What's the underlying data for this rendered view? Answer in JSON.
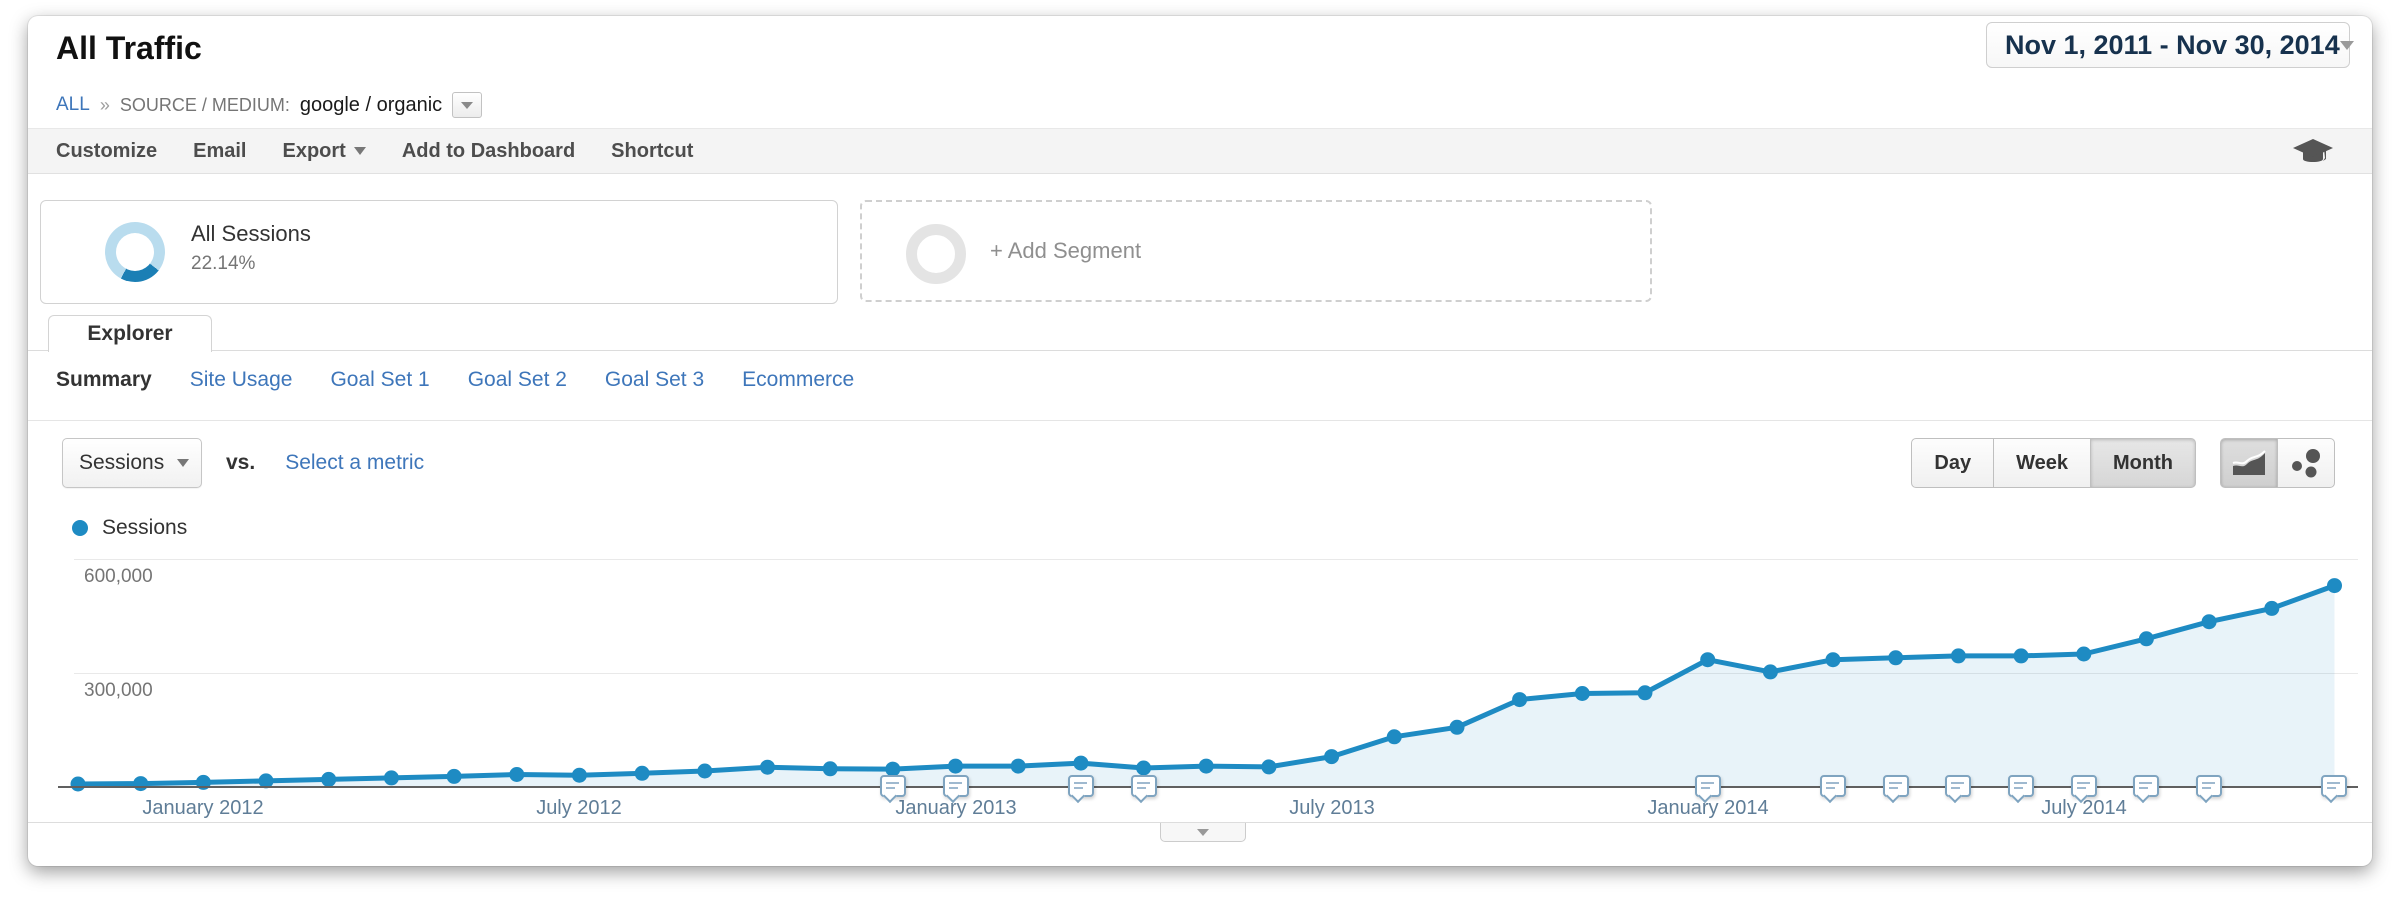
{
  "header": {
    "title": "All Traffic",
    "date_range": "Nov 1, 2011 - Nov 30, 2014"
  },
  "breadcrumb": {
    "all_label": "ALL",
    "separator": "»",
    "dimension_label": "SOURCE / MEDIUM:",
    "dimension_value": "google / organic"
  },
  "toolbar": {
    "items": [
      {
        "label": "Customize",
        "caret": false
      },
      {
        "label": "Email",
        "caret": false
      },
      {
        "label": "Export",
        "caret": true
      },
      {
        "label": "Add to Dashboard",
        "caret": false
      },
      {
        "label": "Shortcut",
        "caret": false
      }
    ],
    "education_icon": "graduation-cap"
  },
  "segments": {
    "all_sessions": {
      "label": "All Sessions",
      "percent": "22.14%",
      "donut_colors": {
        "ring": "#b9dcee",
        "arc": "#1b7fb5"
      }
    },
    "add_segment": {
      "label": "+ Add Segment"
    }
  },
  "explorer_tab": {
    "label": "Explorer"
  },
  "subtabs": [
    {
      "label": "Summary",
      "active": true
    },
    {
      "label": "Site Usage",
      "active": false
    },
    {
      "label": "Goal Set 1",
      "active": false
    },
    {
      "label": "Goal Set 2",
      "active": false
    },
    {
      "label": "Goal Set 3",
      "active": false
    },
    {
      "label": "Ecommerce",
      "active": false
    }
  ],
  "metric_bar": {
    "metric_dropdown_label": "Sessions",
    "vs_label": "vs.",
    "select_metric_label": "Select a metric",
    "granularity": [
      {
        "label": "Day",
        "active": false
      },
      {
        "label": "Week",
        "active": false
      },
      {
        "label": "Month",
        "active": true
      }
    ]
  },
  "legend": {
    "label": "Sessions",
    "dot_color": "#1e8bc3"
  },
  "chart_data": {
    "type": "line",
    "title": "",
    "series_name": "Sessions",
    "xlabel": "",
    "ylabel": "",
    "x": [
      "Nov 2011",
      "Dec 2011",
      "Jan 2012",
      "Feb 2012",
      "Mar 2012",
      "Apr 2012",
      "May 2012",
      "Jun 2012",
      "Jul 2012",
      "Aug 2012",
      "Sep 2012",
      "Oct 2012",
      "Nov 2012",
      "Dec 2012",
      "Jan 2013",
      "Feb 2013",
      "Mar 2013",
      "Apr 2013",
      "May 2013",
      "Jun 2013",
      "Jul 2013",
      "Aug 2013",
      "Sep 2013",
      "Oct 2013",
      "Nov 2013",
      "Dec 2013",
      "Jan 2014",
      "Feb 2014",
      "Mar 2014",
      "Apr 2014",
      "May 2014",
      "Jun 2014",
      "Jul 2014",
      "Aug 2014",
      "Sep 2014",
      "Oct 2014",
      "Nov 2014"
    ],
    "values": [
      8000,
      9000,
      12000,
      16000,
      20000,
      24000,
      28000,
      33000,
      31000,
      36000,
      42000,
      52000,
      48000,
      47000,
      55000,
      55000,
      63000,
      50000,
      55000,
      53000,
      80000,
      132000,
      157000,
      230000,
      246000,
      248000,
      335000,
      303000,
      335000,
      340000,
      345000,
      345000,
      350000,
      390000,
      435000,
      470000,
      530000
    ],
    "ylim": [
      0,
      650000
    ],
    "grid": true,
    "legend_position": "top-left",
    "yticks": [
      {
        "value": 300000,
        "label": "300,000"
      },
      {
        "value": 600000,
        "label": "600,000"
      }
    ],
    "xticks": [
      {
        "index": 2,
        "label": "January 2012"
      },
      {
        "index": 8,
        "label": "July 2012"
      },
      {
        "index": 14,
        "label": "January 2013"
      },
      {
        "index": 20,
        "label": "July 2013"
      },
      {
        "index": 26,
        "label": "January 2014"
      },
      {
        "index": 32,
        "label": "July 2014"
      }
    ],
    "annotation_months": [
      "Dec 2012",
      "Jan 2013",
      "Mar 2013",
      "Apr 2013",
      "Jan 2014",
      "Mar 2014",
      "Apr 2014",
      "May 2014",
      "Jun 2014",
      "Jul 2014",
      "Aug 2014",
      "Sep 2014",
      "Nov 2014"
    ],
    "line_color": "#1e8bc3",
    "fill_color": "rgba(30,139,195,0.10)"
  }
}
